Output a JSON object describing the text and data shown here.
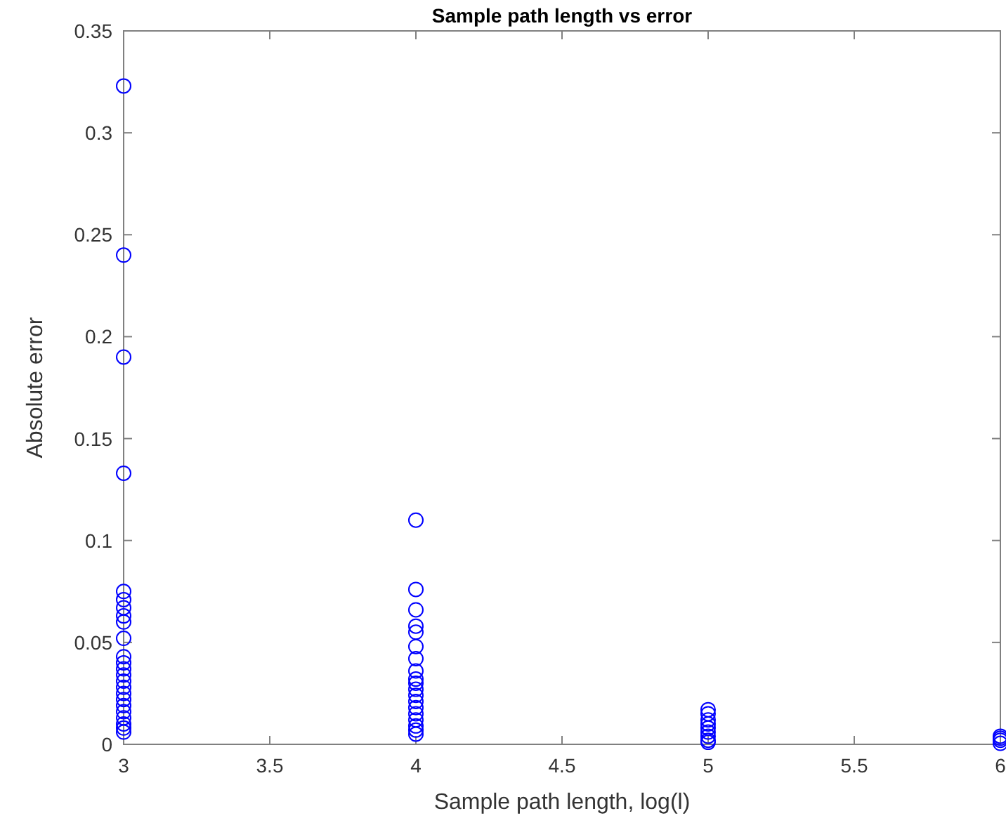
{
  "chart_data": {
    "type": "scatter",
    "title": "Sample path length vs error",
    "xlabel": "Sample path length, log(l)",
    "ylabel": "Absolute error",
    "xlim": [
      3,
      6
    ],
    "xticks": [
      3,
      3.5,
      4,
      4.5,
      5,
      5.5,
      6
    ],
    "ylim": [
      0,
      0.35
    ],
    "yticks": [
      0,
      0.05,
      0.1,
      0.15,
      0.2,
      0.25,
      0.3,
      0.35
    ],
    "marker": "circle",
    "series": [
      {
        "color": "#0000ff",
        "x": [
          3,
          3,
          3,
          3,
          3,
          3,
          3,
          3,
          3,
          3,
          3,
          3,
          3,
          3,
          3,
          3,
          3,
          3,
          3,
          3,
          3,
          3,
          3,
          3,
          4,
          4,
          4,
          4,
          4,
          4,
          4,
          4,
          4,
          4,
          4,
          4,
          4,
          4,
          4,
          4,
          4,
          4,
          4,
          5,
          5,
          5,
          5,
          5,
          5,
          5,
          5,
          5,
          6,
          6,
          6,
          6
        ],
        "values": [
          0.323,
          0.24,
          0.19,
          0.133,
          0.075,
          0.071,
          0.067,
          0.063,
          0.06,
          0.052,
          0.043,
          0.04,
          0.037,
          0.034,
          0.031,
          0.028,
          0.025,
          0.022,
          0.019,
          0.016,
          0.013,
          0.01,
          0.008,
          0.006,
          0.11,
          0.076,
          0.066,
          0.058,
          0.055,
          0.048,
          0.042,
          0.036,
          0.032,
          0.03,
          0.027,
          0.024,
          0.021,
          0.018,
          0.015,
          0.012,
          0.009,
          0.007,
          0.005,
          0.017,
          0.015,
          0.012,
          0.01,
          0.008,
          0.006,
          0.004,
          0.002,
          0.001,
          0.004,
          0.003,
          0.002,
          0.0005
        ]
      }
    ]
  }
}
